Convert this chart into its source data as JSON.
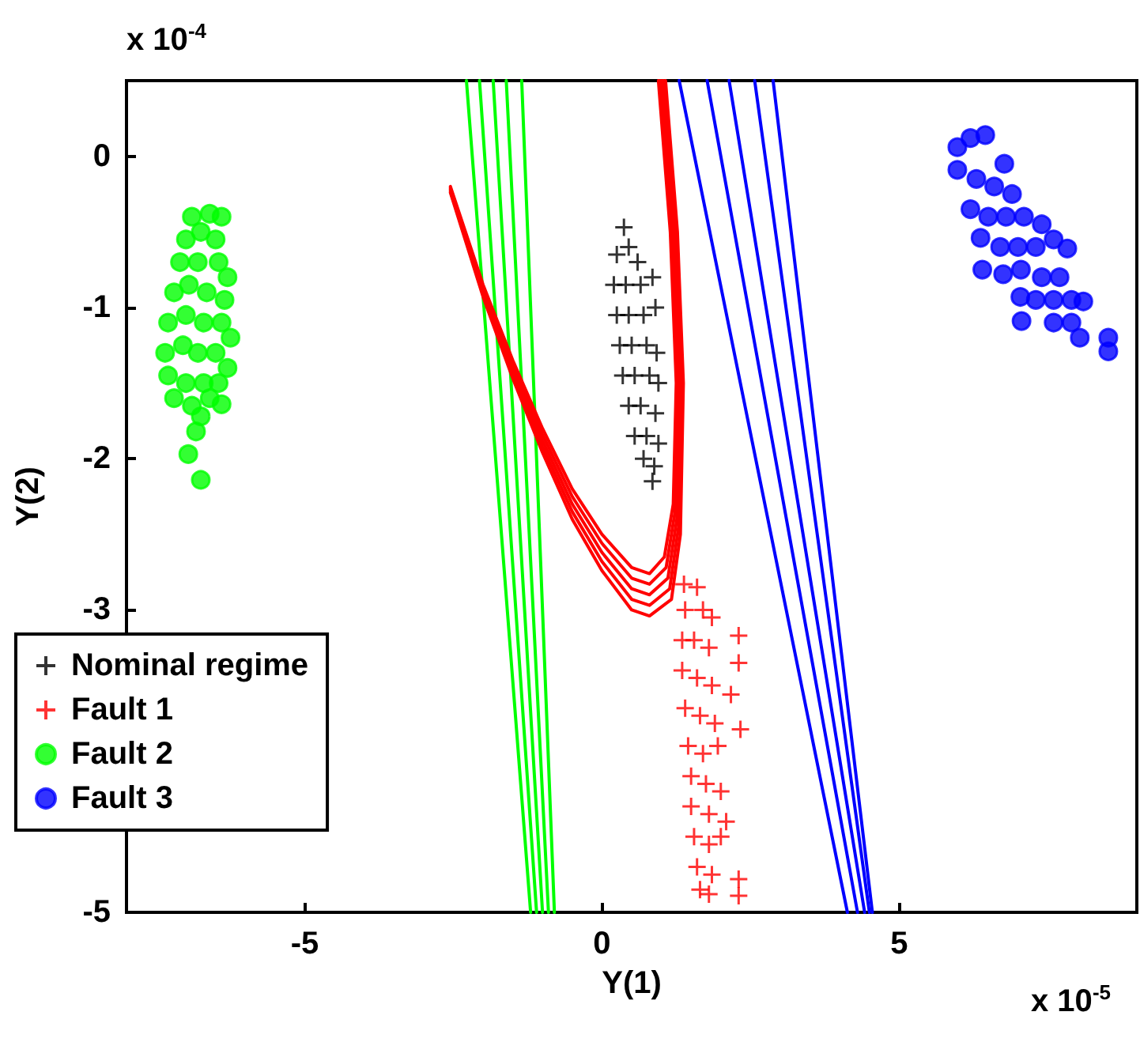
{
  "chart_data": {
    "type": "scatter",
    "xlabel": "Y(1)",
    "ylabel": "Y(2)",
    "annotations": [
      "x 10$^{-4}$",
      "x 10$^{-5}$"
    ],
    "xlim": [
      -8,
      9
    ],
    "xticks": [
      -5,
      0,
      5
    ],
    "ylim": [
      -5,
      0.5
    ],
    "yticks": [
      -5,
      {
        "value": -4,
        "label": null
      },
      -3,
      -2,
      -1,
      0
    ],
    "grid": false,
    "legend": "bottom left",
    "series": [
      {
        "name": "Nominal regime",
        "color": "#000000",
        "marker": "cross",
        "x": [
          0.37,
          0.25,
          0.45,
          0.6,
          0.2,
          0.4,
          0.65,
          0.85,
          0.25,
          0.45,
          0.7,
          0.9,
          0.3,
          0.5,
          0.75,
          0.92,
          0.35,
          0.55,
          0.8,
          0.95,
          0.45,
          0.65,
          0.9,
          0.55,
          0.75,
          0.95,
          0.7,
          0.88,
          0.85
        ],
        "values": [
          -0.47,
          -0.65,
          -0.6,
          -0.7,
          -0.85,
          -0.85,
          -0.85,
          -0.8,
          -1.05,
          -1.05,
          -1.05,
          -1.0,
          -1.25,
          -1.25,
          -1.25,
          -1.3,
          -1.45,
          -1.45,
          -1.45,
          -1.5,
          -1.65,
          -1.65,
          -1.7,
          -1.85,
          -1.85,
          -1.9,
          -2.0,
          -2.05,
          -2.15
        ]
      },
      {
        "name": "Fault 1",
        "color": "#ff0000",
        "marker": "cross",
        "x": [
          1.38,
          1.6,
          1.4,
          1.7,
          1.85,
          1.35,
          1.55,
          1.8,
          1.35,
          1.6,
          1.85,
          1.4,
          1.65,
          1.9,
          1.45,
          1.7,
          1.95,
          1.5,
          1.75,
          2.0,
          1.5,
          1.8,
          1.55,
          1.8,
          2.0,
          1.6,
          1.85,
          1.65,
          1.8,
          2.3,
          2.3,
          2.17,
          2.33,
          2.09,
          2.3,
          2.3
        ],
        "values": [
          -2.83,
          -2.85,
          -3.0,
          -3.0,
          -3.05,
          -3.2,
          -3.2,
          -3.25,
          -3.4,
          -3.45,
          -3.5,
          -3.65,
          -3.7,
          -3.75,
          -3.9,
          -3.95,
          -3.9,
          -4.1,
          -4.15,
          -4.2,
          -4.3,
          -4.35,
          -4.5,
          -4.55,
          -4.5,
          -4.7,
          -4.75,
          -4.85,
          -4.88,
          -3.17,
          -3.35,
          -3.56,
          -3.79,
          -4.4,
          -4.78,
          -4.89
        ]
      },
      {
        "name": "Fault 2",
        "color": "#00ff00",
        "marker": "circle",
        "x": [
          -6.9,
          -6.6,
          -6.4,
          -7.0,
          -6.75,
          -6.5,
          -7.1,
          -6.8,
          -6.45,
          -6.3,
          -7.2,
          -6.95,
          -6.65,
          -6.35,
          -7.3,
          -7.0,
          -6.7,
          -6.4,
          -6.25,
          -7.35,
          -7.05,
          -6.8,
          -6.5,
          -6.3,
          -7.3,
          -7.0,
          -6.7,
          -6.45,
          -7.2,
          -6.9,
          -6.6,
          -6.4,
          -6.75,
          -6.83,
          -6.96,
          -6.75
        ],
        "values": [
          -0.4,
          -0.38,
          -0.4,
          -0.55,
          -0.5,
          -0.55,
          -0.7,
          -0.7,
          -0.7,
          -0.8,
          -0.9,
          -0.85,
          -0.9,
          -0.95,
          -1.1,
          -1.05,
          -1.1,
          -1.1,
          -1.2,
          -1.3,
          -1.25,
          -1.3,
          -1.3,
          -1.4,
          -1.45,
          -1.5,
          -1.5,
          -1.5,
          -1.6,
          -1.65,
          -1.6,
          -1.64,
          -1.72,
          -1.82,
          -1.97,
          -2.14
        ]
      },
      {
        "name": "Fault 3",
        "color": "#0000ff",
        "marker": "circle",
        "x": [
          5.98,
          6.2,
          6.45,
          6.77,
          5.98,
          6.3,
          6.6,
          6.9,
          6.2,
          6.5,
          6.8,
          7.1,
          7.4,
          6.37,
          6.7,
          7.0,
          7.3,
          7.6,
          7.83,
          6.4,
          6.75,
          7.05,
          7.4,
          7.7,
          7.04,
          7.3,
          7.6,
          7.9,
          8.1,
          7.06,
          7.6,
          7.9,
          8.04,
          8.52,
          8.52
        ],
        "values": [
          0.06,
          0.12,
          0.14,
          -0.05,
          -0.09,
          -0.15,
          -0.2,
          -0.25,
          -0.35,
          -0.4,
          -0.4,
          -0.4,
          -0.45,
          -0.54,
          -0.6,
          -0.6,
          -0.6,
          -0.55,
          -0.61,
          -0.75,
          -0.78,
          -0.75,
          -0.8,
          -0.8,
          -0.93,
          -0.95,
          -0.95,
          -0.95,
          -0.96,
          -1.09,
          -1.1,
          -1.1,
          -1.2,
          -1.2,
          -1.29
        ]
      },
      {
        "type": "line",
        "color": "#00ff00",
        "x": [
          -2.28,
          -1.2
        ],
        "values": [
          0.5,
          -5
        ]
      },
      {
        "type": "line",
        "color": "#00ff00",
        "x": [
          -2.06,
          -1.1
        ],
        "values": [
          0.5,
          -5
        ]
      },
      {
        "type": "line",
        "color": "#00ff00",
        "x": [
          -1.83,
          -1.0
        ],
        "values": [
          0.5,
          -5
        ]
      },
      {
        "type": "line",
        "color": "#00ff00",
        "x": [
          -1.61,
          -0.9
        ],
        "values": [
          0.5,
          -5
        ]
      },
      {
        "type": "line",
        "color": "#00ff00",
        "x": [
          -1.35,
          -0.8
        ],
        "values": [
          0.5,
          -5
        ]
      },
      {
        "type": "line",
        "color": "#0000ff",
        "x": [
          1.3,
          4.13
        ],
        "values": [
          0.5,
          -5
        ]
      },
      {
        "type": "line",
        "color": "#0000ff",
        "x": [
          1.77,
          4.3
        ],
        "values": [
          0.5,
          -5
        ]
      },
      {
        "type": "line",
        "color": "#0000ff",
        "x": [
          2.14,
          4.42
        ],
        "values": [
          0.5,
          -5
        ]
      },
      {
        "type": "line",
        "color": "#0000ff",
        "x": [
          2.57,
          4.5
        ],
        "values": [
          0.5,
          -5
        ]
      },
      {
        "type": "line",
        "color": "#0000ff",
        "x": [
          2.88,
          4.55
        ],
        "values": [
          0.5,
          -5
        ]
      },
      {
        "type": "line",
        "color": "#ff0000",
        "x": [
          -2.55,
          -2.0,
          -1.5,
          -1.0,
          -0.5,
          0,
          0.5,
          0.8,
          1.05,
          1.2,
          1.25,
          1.15,
          0.95
        ],
        "values": [
          -0.2,
          -0.85,
          -1.35,
          -1.8,
          -2.2,
          -2.5,
          -2.72,
          -2.76,
          -2.65,
          -2.3,
          -1.5,
          -0.5,
          0.5
        ]
      },
      {
        "type": "line",
        "color": "#ff0000",
        "x": [
          -2.55,
          -2.0,
          -1.5,
          -1.0,
          -0.5,
          0,
          0.5,
          0.8,
          1.08,
          1.23,
          1.28,
          1.18,
          0.98
        ],
        "values": [
          -0.21,
          -0.87,
          -1.38,
          -1.84,
          -2.25,
          -2.56,
          -2.79,
          -2.83,
          -2.72,
          -2.35,
          -1.5,
          -0.5,
          0.5
        ]
      },
      {
        "type": "line",
        "color": "#ff0000",
        "x": [
          -2.55,
          -2.0,
          -1.5,
          -1.0,
          -0.5,
          0,
          0.5,
          0.8,
          1.11,
          1.26,
          1.31,
          1.21,
          1.01
        ],
        "values": [
          -0.22,
          -0.89,
          -1.41,
          -1.88,
          -2.3,
          -2.62,
          -2.86,
          -2.9,
          -2.79,
          -2.4,
          -1.5,
          -0.5,
          0.5
        ]
      },
      {
        "type": "line",
        "color": "#ff0000",
        "x": [
          -2.55,
          -2.0,
          -1.5,
          -1.0,
          -0.5,
          0,
          0.5,
          0.8,
          1.14,
          1.29,
          1.34,
          1.24,
          1.04
        ],
        "values": [
          -0.23,
          -0.91,
          -1.44,
          -1.92,
          -2.35,
          -2.68,
          -2.93,
          -2.97,
          -2.86,
          -2.45,
          -1.5,
          -0.5,
          0.5
        ]
      },
      {
        "type": "line",
        "color": "#ff0000",
        "x": [
          -2.55,
          -2.0,
          -1.5,
          -1.0,
          -0.5,
          0,
          0.5,
          0.8,
          1.17,
          1.32,
          1.37,
          1.27,
          1.07
        ],
        "values": [
          -0.24,
          -0.93,
          -1.47,
          -1.96,
          -2.4,
          -2.74,
          -3.0,
          -3.04,
          -2.93,
          -2.5,
          -1.5,
          -0.5,
          0.5
        ]
      }
    ]
  }
}
